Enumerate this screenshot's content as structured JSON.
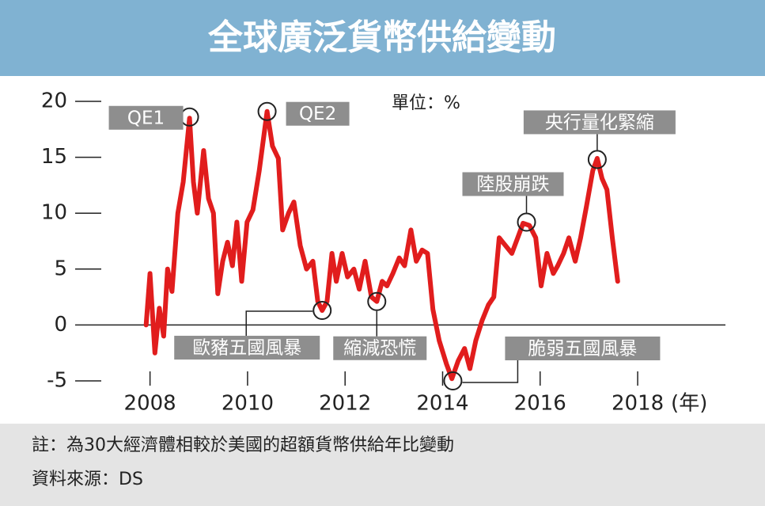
{
  "chart_data": {
    "type": "line",
    "title": "全球廣泛貨幣供給變動",
    "unit_label": "單位：%",
    "x_label": "(年)",
    "notes": [
      "註：為30大經濟體相較於美國的超額貨幣供給年比變動",
      "資料來源：DS"
    ],
    "color": "#e11d1d",
    "x": [
      2007.92,
      2008.0,
      2008.1,
      2008.19,
      2008.28,
      2008.36,
      2008.45,
      2008.57,
      2008.68,
      2008.81,
      2008.89,
      2008.97,
      2009.1,
      2009.2,
      2009.3,
      2009.39,
      2009.49,
      2009.59,
      2009.69,
      2009.78,
      2009.88,
      2009.99,
      2010.11,
      2010.24,
      2010.4,
      2010.51,
      2010.63,
      2010.72,
      2010.84,
      2010.95,
      2011.08,
      2011.21,
      2011.34,
      2011.44,
      2011.53,
      2011.63,
      2011.73,
      2011.82,
      2011.94,
      2012.05,
      2012.18,
      2012.29,
      2012.41,
      2012.54,
      2012.65,
      2012.76,
      2012.86,
      2012.98,
      2013.11,
      2013.22,
      2013.35,
      2013.46,
      2013.58,
      2013.69,
      2013.8,
      2013.93,
      2014.08,
      2014.19,
      2014.32,
      2014.45,
      2014.56,
      2014.68,
      2014.81,
      2014.94,
      2015.05,
      2015.16,
      2015.29,
      2015.42,
      2015.54,
      2015.65,
      2015.78,
      2015.91,
      2016.02,
      2016.14,
      2016.27,
      2016.36,
      2016.48,
      2016.59,
      2016.72,
      2016.83,
      2016.95,
      2017.08,
      2017.17,
      2017.27,
      2017.37,
      2017.48,
      2017.59
    ],
    "values": [
      0,
      4.6,
      -2.5,
      1.5,
      -1,
      5,
      3,
      10,
      12.8,
      18.5,
      12.8,
      10,
      15.6,
      11.3,
      10,
      2.8,
      5.7,
      7.4,
      5.3,
      9.2,
      3.9,
      9.2,
      10.3,
      13.8,
      19.1,
      16,
      14.9,
      8.5,
      10,
      11,
      7.1,
      5,
      5.7,
      2.1,
      1.3,
      2.1,
      6.4,
      3.9,
      6.4,
      4.3,
      5,
      3.2,
      5.7,
      2.5,
      2.1,
      3.9,
      3.5,
      4.6,
      6,
      5.3,
      8.5,
      5.7,
      6.7,
      6.4,
      1.4,
      -1.4,
      -3.5,
      -4.8,
      -3.2,
      -2.1,
      -3.9,
      -1.4,
      0.4,
      1.8,
      2.5,
      7.8,
      7.1,
      6.4,
      7.8,
      9.1,
      8.9,
      7.8,
      3.5,
      6.4,
      4.6,
      5.3,
      6.4,
      7.8,
      5.7,
      7.8,
      10.6,
      13.8,
      14.9,
      13.1,
      12.1,
      7.8,
      3.9
    ],
    "xlim": [
      2007,
      2019.8
    ],
    "xticks": [
      2008,
      2010,
      2012,
      2014,
      2016,
      2018
    ],
    "ylim": [
      -5,
      20
    ],
    "yticks": [
      20,
      15,
      10,
      5,
      0,
      -5
    ],
    "annotations": [
      {
        "text": "QE1",
        "x": 2008.81,
        "y": 18.6
      },
      {
        "text": "QE2",
        "x": 2010.4,
        "y": 19.1
      },
      {
        "text": "央行量化緊縮",
        "x": 2017.17,
        "y": 14.8
      },
      {
        "text": "陸股崩跌",
        "x": 2015.72,
        "y": 9.2
      },
      {
        "text": "歐豬五國風暴",
        "x": 2011.53,
        "y": 1.3
      },
      {
        "text": "縮減恐慌",
        "x": 2012.65,
        "y": 2.1
      },
      {
        "text": "脆弱五國風暴",
        "x": 2014.21,
        "y": -5.0
      }
    ]
  }
}
